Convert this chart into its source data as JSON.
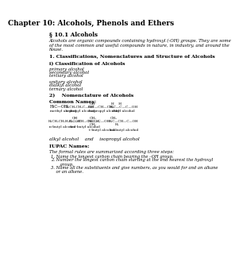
{
  "title": "Chapter 10: Alcohols, Phenols and Ethers",
  "section1": "§ 10.1 Alcohols",
  "intro": "Alcohols are organic compounds containing hydroxyl (-OH) groups. They are some\nof the most common and useful compounds in nature, in industry, and around the\nhouse.",
  "section2": "1. Classifications, Nomenclatures and Structure of Alcohols",
  "subsection1": "i) Classification of Alcohols",
  "class_list1": [
    "primary alcohol",
    "secondary alcohol",
    "tertiary alcohol"
  ],
  "class_list2": [
    "unitary alcohol",
    "dialkyl alcohol",
    "ternary alcohol"
  ],
  "subsection2": "2)    Nomenclature of Alcohols",
  "common_names": "Common Names:",
  "alkyl_note": "alkyl alcohol    and    isopropyl alcohol",
  "iupac_title": "IUPAC Names:",
  "iupac_intro": "The formal rules are summarized according three steps:",
  "iupac_rules": [
    "Name the longest carbon chain bearing the –OH group.",
    "Number the longest carbon chain starting at the end nearest the hydroxyl\n       group.",
    "Name all the substituents and give numbers, as you would for and an alkane\n    or an alkene."
  ],
  "bg_color": "#ffffff",
  "text_color": "#000000"
}
